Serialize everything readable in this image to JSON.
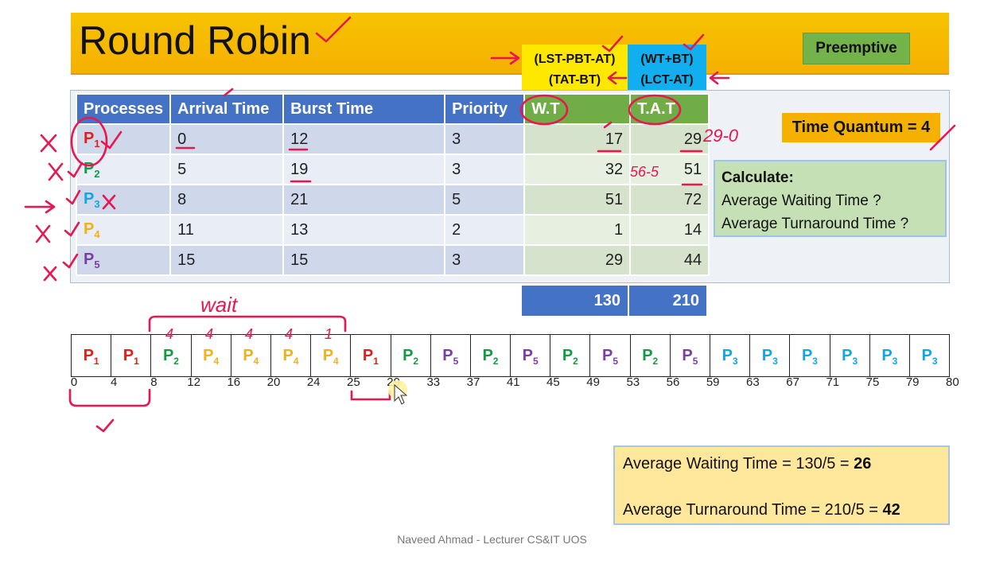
{
  "title": "Round Robin",
  "mode_label": "Preemptive",
  "formula_wt": [
    "(LST-PBT-AT)",
    "(TAT-BT)"
  ],
  "formula_tat": [
    "(WT+BT)",
    "(LCT-AT)"
  ],
  "table": {
    "headers": [
      "Processes",
      "Arrival Time",
      "Burst Time",
      "Priority",
      "W.T",
      "T.A.T"
    ],
    "rows": [
      {
        "p": "P",
        "sub": "1",
        "color": "#e0201b",
        "at": "0",
        "bt": "12",
        "pr": "3",
        "wt": "17",
        "tat": "29"
      },
      {
        "p": "P",
        "sub": "2",
        "color": "#119c44",
        "at": "5",
        "bt": "19",
        "pr": "3",
        "wt": "32",
        "tat": "51"
      },
      {
        "p": "P",
        "sub": "3",
        "color": "#11a6e6",
        "at": "8",
        "bt": "21",
        "pr": "5",
        "wt": "51",
        "tat": "72"
      },
      {
        "p": "P",
        "sub": "4",
        "color": "#f2b01a",
        "at": "11",
        "bt": "13",
        "pr": "2",
        "wt": "1",
        "tat": "14"
      },
      {
        "p": "P",
        "sub": "5",
        "color": "#7a3fa0",
        "at": "15",
        "bt": "15",
        "pr": "3",
        "wt": "29",
        "tat": "44"
      }
    ],
    "total_wt": "130",
    "total_tat": "210"
  },
  "time_quantum": "Time Quantum = 4",
  "calculate": {
    "title": "Calculate:",
    "line1": "Average Waiting Time ?",
    "line2": "Average Turnaround Time ?"
  },
  "gantt": {
    "cells": [
      {
        "p": "P",
        "sub": "1",
        "color": "#e0201b"
      },
      {
        "p": "P",
        "sub": "1",
        "color": "#e0201b"
      },
      {
        "p": "P",
        "sub": "2",
        "color": "#119c44"
      },
      {
        "p": "P",
        "sub": "4",
        "color": "#f2b01a"
      },
      {
        "p": "P",
        "sub": "4",
        "color": "#f2b01a"
      },
      {
        "p": "P",
        "sub": "4",
        "color": "#f2b01a"
      },
      {
        "p": "P",
        "sub": "4",
        "color": "#f2b01a"
      },
      {
        "p": "P",
        "sub": "1",
        "color": "#e0201b"
      },
      {
        "p": "P",
        "sub": "2",
        "color": "#119c44"
      },
      {
        "p": "P",
        "sub": "5",
        "color": "#7a3fa0"
      },
      {
        "p": "P",
        "sub": "2",
        "color": "#119c44"
      },
      {
        "p": "P",
        "sub": "5",
        "color": "#7a3fa0"
      },
      {
        "p": "P",
        "sub": "2",
        "color": "#119c44"
      },
      {
        "p": "P",
        "sub": "5",
        "color": "#7a3fa0"
      },
      {
        "p": "P",
        "sub": "2",
        "color": "#119c44"
      },
      {
        "p": "P",
        "sub": "5",
        "color": "#7a3fa0"
      },
      {
        "p": "P",
        "sub": "3",
        "color": "#11a6e6"
      },
      {
        "p": "P",
        "sub": "3",
        "color": "#11a6e6"
      },
      {
        "p": "P",
        "sub": "3",
        "color": "#11a6e6"
      },
      {
        "p": "P",
        "sub": "3",
        "color": "#11a6e6"
      },
      {
        "p": "P",
        "sub": "3",
        "color": "#11a6e6"
      },
      {
        "p": "P",
        "sub": "3",
        "color": "#11a6e6"
      }
    ],
    "times": [
      "0",
      "4",
      "8",
      "12",
      "16",
      "20",
      "24",
      "25",
      "29",
      "33",
      "37",
      "41",
      "45",
      "49",
      "53",
      "56",
      "59",
      "63",
      "67",
      "71",
      "75",
      "79",
      "80"
    ]
  },
  "averages": {
    "wt_prefix": "Average Waiting Time = 130/5 = ",
    "wt_value": "26",
    "tat_prefix": "Average Turnaround Time = 210/5 = ",
    "tat_value": "42"
  },
  "footer": "Naveed Ahmad - Lecturer CS&IT UOS",
  "annotations": {
    "wait": "wait",
    "tat_calc": "29-0",
    "tat_calc2": "56-5",
    "gantt_wait_marks": [
      "4",
      "4",
      "4",
      "4",
      "1"
    ]
  }
}
